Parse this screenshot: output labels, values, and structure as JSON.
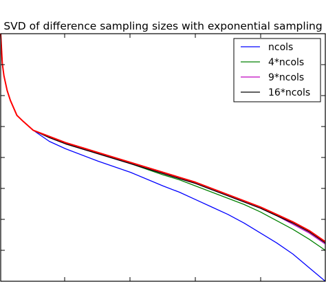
{
  "chart_data": {
    "type": "line",
    "title": "SVD of difference sampling sizes with exponential sampling",
    "xlabel": "",
    "ylabel": "",
    "xlim": [
      0,
      100
    ],
    "ylim": [
      0,
      100
    ],
    "grid": false,
    "legend_position": "top-right",
    "series": [
      {
        "name": "ncols",
        "color": "#0000ff",
        "x": [
          0,
          0.5,
          1,
          2,
          3,
          5,
          7,
          10,
          15,
          20,
          30,
          40,
          50,
          55,
          60,
          65,
          70,
          75,
          80,
          85,
          90,
          95,
          100
        ],
        "y": [
          100,
          88,
          83,
          77,
          73,
          67,
          64.5,
          61,
          56.5,
          53.5,
          48.5,
          44,
          38.5,
          36,
          33,
          30,
          27,
          23.5,
          19.5,
          15.5,
          11,
          5.5,
          0
        ]
      },
      {
        "name": "4*ncols",
        "color": "#008000",
        "x": [
          0,
          0.5,
          1,
          2,
          3,
          5,
          7,
          10,
          15,
          20,
          30,
          40,
          50,
          55,
          60,
          65,
          70,
          75,
          80,
          85,
          90,
          95,
          100
        ],
        "y": [
          100,
          88,
          83,
          77,
          73,
          67,
          64.5,
          61,
          58,
          55.5,
          51.5,
          47.5,
          43,
          41,
          38.5,
          36,
          33.5,
          31,
          28,
          24.5,
          21,
          17,
          12.5
        ]
      },
      {
        "name": "9*ncols",
        "color": "#bf00bf",
        "x": [
          0,
          0.5,
          1,
          2,
          3,
          5,
          7,
          10,
          15,
          20,
          30,
          40,
          50,
          55,
          60,
          65,
          70,
          75,
          80,
          85,
          90,
          95,
          100
        ],
        "y": [
          100,
          88,
          83,
          77,
          73,
          67,
          64.5,
          61,
          58,
          55.5,
          51.5,
          47.5,
          43.5,
          41.5,
          39.5,
          37,
          34.5,
          32,
          29.5,
          26.5,
          23,
          19.5,
          15
        ]
      },
      {
        "name": "16*ncols",
        "color": "#000000",
        "x": [
          0,
          0.5,
          1,
          2,
          3,
          5,
          7,
          10,
          15,
          20,
          30,
          40,
          50,
          55,
          60,
          65,
          70,
          75,
          80,
          85,
          90,
          95,
          100
        ],
        "y": [
          100,
          88,
          83,
          77,
          73,
          67,
          64.5,
          61,
          58,
          55.5,
          51.5,
          47.5,
          43.5,
          41.5,
          39.5,
          37,
          34.5,
          32,
          29.5,
          26.5,
          23.5,
          20,
          15.5
        ]
      },
      {
        "name": "",
        "color": "#ff0000",
        "x": [
          0,
          0.5,
          1,
          2,
          3,
          5,
          7,
          10,
          15,
          20,
          30,
          40,
          50,
          55,
          60,
          65,
          70,
          75,
          80,
          85,
          90,
          95,
          100
        ],
        "y": [
          100,
          88,
          83,
          77,
          73,
          67,
          64.5,
          61,
          58.5,
          56,
          52,
          48,
          44,
          42,
          40,
          37.5,
          35,
          32.5,
          30,
          27,
          24,
          20.5,
          16
        ]
      }
    ]
  }
}
